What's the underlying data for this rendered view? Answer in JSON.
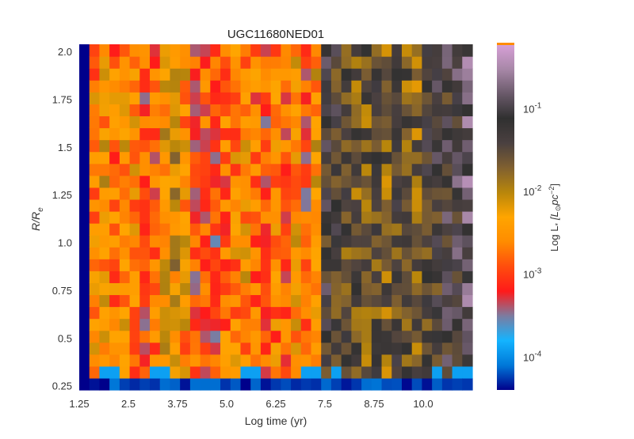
{
  "chart_data": {
    "type": "heatmap",
    "title": "UGC11680NED01",
    "xlabel": "Log time (yr)",
    "ylabel": "R/R_e",
    "ylabel_parts": {
      "main": "R/R",
      "sub": "e"
    },
    "x_ticks": [
      "1.25",
      "2.5",
      "3.75",
      "5.0",
      "6.25",
      "7.5",
      "8.75",
      "10.0"
    ],
    "y_ticks": [
      "0.25",
      "0.5",
      "0.75",
      "1.0",
      "1.25",
      "1.5",
      "1.75",
      "2.0"
    ],
    "xlim": [
      1.25,
      11.25
    ],
    "ylim": [
      0.23,
      2.04
    ],
    "x_bins": 39,
    "y_bins": 29,
    "colorbar": {
      "label": "Log L_* [L_⊙ pc^-2]",
      "label_parts": {
        "main": "Log L",
        "sub": "*",
        "bracket_open": "[L",
        "sun": "⊙",
        "pc": "pc",
        "exp": "−2",
        "bracket_close": "]"
      },
      "scale": "log",
      "ticks": [
        {
          "base": "10",
          "exp": "-1",
          "value": 0.1
        },
        {
          "base": "10",
          "exp": "-2",
          "value": 0.01
        },
        {
          "base": "10",
          "exp": "-3",
          "value": 0.001
        },
        {
          "base": "10",
          "exp": "-4",
          "value": 0.0001
        }
      ],
      "range": [
        4e-05,
        0.6
      ],
      "colormap": [
        "#00008b",
        "#0078d8",
        "#14b4ff",
        "#7c7ca0",
        "#ff1a1a",
        "#ff4d0d",
        "#ff8c00",
        "#ffa500",
        "#b8860b",
        "#806030",
        "#4a4040",
        "#303030",
        "#6a5a6a",
        "#a888a8",
        "#d8a0d8"
      ]
    },
    "column_profile_log": [
      -4.2,
      -2.6,
      -2.4,
      -2.7,
      -2.5,
      -2.6,
      -3.0,
      -2.9,
      -2.3,
      -2.2,
      -2.5,
      -3.0,
      -2.9,
      -3.1,
      -2.8,
      -2.6,
      -2.5,
      -2.8,
      -3.0,
      -2.7,
      -2.9,
      -2.5,
      -3.0,
      -2.4,
      -1.2,
      -1.3,
      -1.5,
      -1.6,
      -1.6,
      -1.5,
      -1.7,
      -1.4,
      -1.6,
      -1.7,
      -1.4,
      -1.3,
      -1.2,
      -1.1,
      -0.9
    ]
  }
}
